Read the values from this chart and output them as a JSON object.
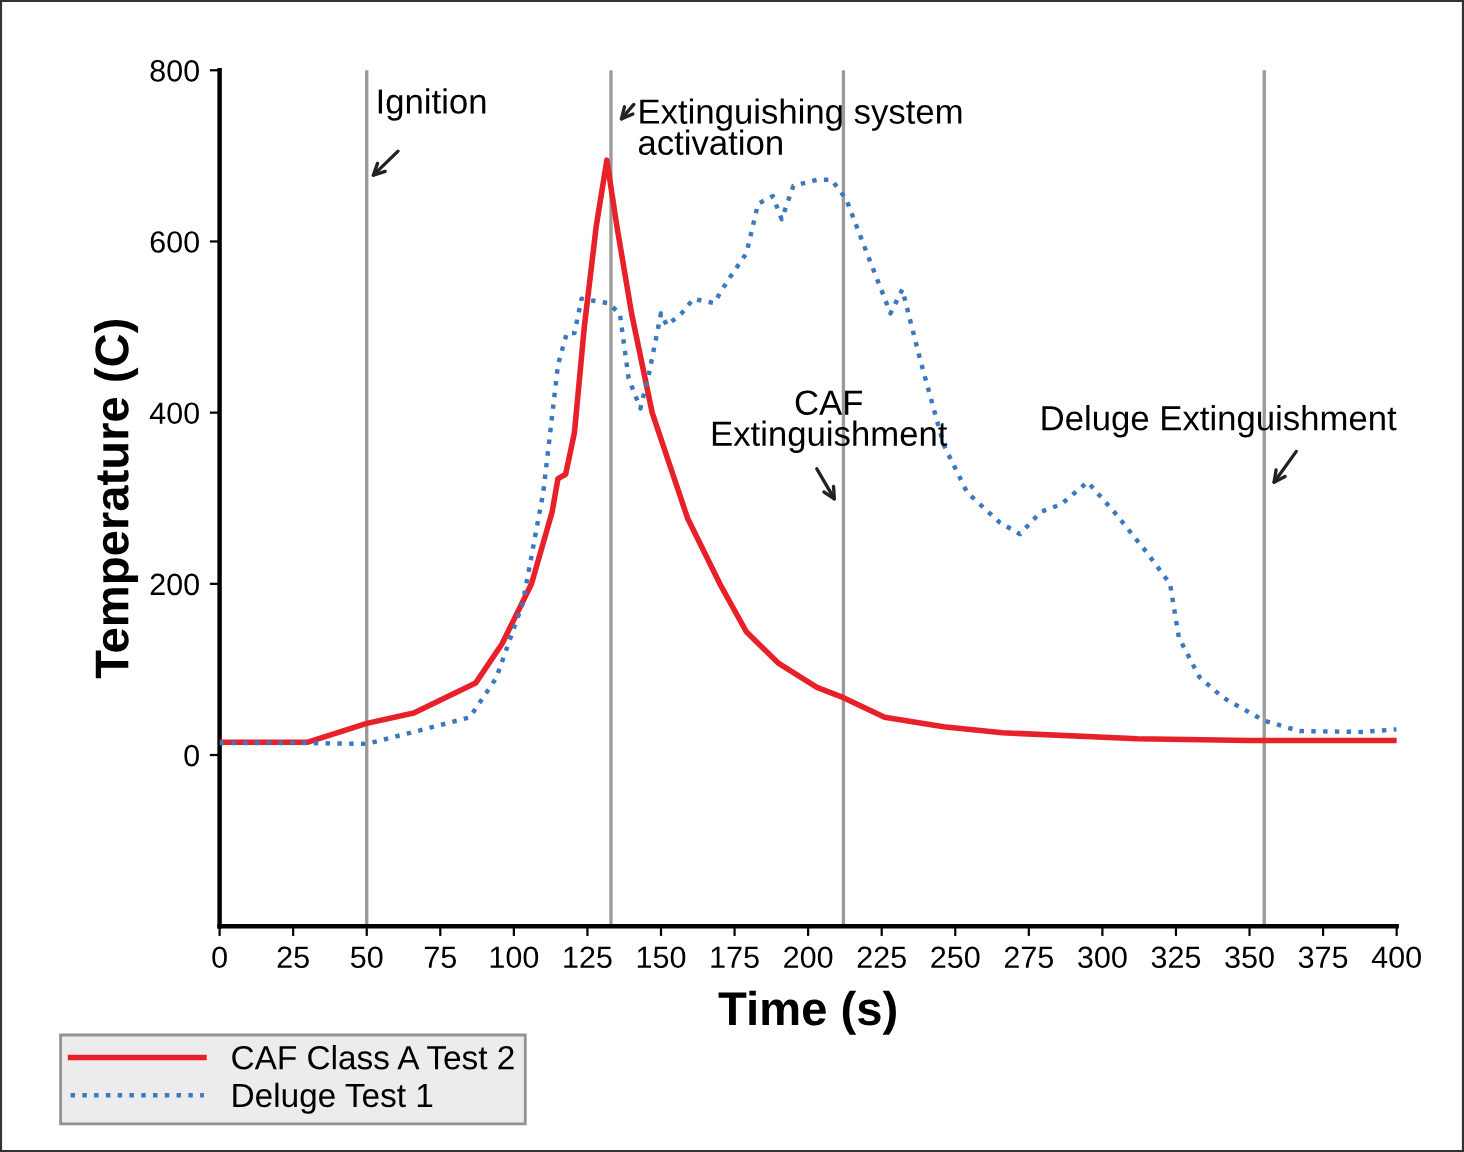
{
  "chart_data": {
    "type": "line",
    "xlabel": "Time (s)",
    "ylabel": "Temperature (C)",
    "xlim": [
      0,
      400
    ],
    "xticks": [
      0,
      25,
      50,
      75,
      100,
      125,
      150,
      175,
      200,
      225,
      250,
      275,
      300,
      325,
      350,
      375,
      400
    ],
    "ylim": [
      -200,
      800
    ],
    "yticks": [
      0,
      200,
      400,
      600,
      800
    ],
    "grid": false,
    "legend": "bottom left",
    "series": [
      {
        "name": "CAF Class A Test 2",
        "color": "#e8202a",
        "line_style": "solid",
        "x": [
          0,
          30,
          50,
          66,
          87,
          96,
          106,
          113,
          115,
          117.6,
          120.6,
          124,
          128,
          131.6,
          135,
          140,
          147,
          159,
          170,
          179,
          190,
          203,
          212,
          226,
          246,
          266,
          312,
          350,
          400
        ],
        "values": [
          15,
          15,
          37,
          49,
          84,
          130,
          200,
          284,
          323,
          328,
          377,
          502,
          618,
          695,
          618,
          516,
          400,
          277,
          200,
          144,
          107,
          79,
          67,
          44,
          33,
          26,
          19,
          17,
          17
        ]
      },
      {
        "name": "Deluge Test 1",
        "color": "#3a78c0",
        "line_style": "dotted",
        "x": [
          0,
          30,
          50,
          66,
          85,
          94,
          103,
          110,
          115,
          118,
          120.6,
          123,
          132,
          136,
          139,
          143,
          146,
          150,
          152,
          157,
          161,
          168,
          173,
          179,
          183,
          188,
          191,
          195,
          203,
          208,
          213,
          219,
          228,
          232,
          238,
          246,
          254,
          265,
          272,
          279,
          286,
          295,
          304,
          315,
          323,
          326,
          333,
          341,
          355,
          367,
          388,
          400
        ],
        "values": [
          14,
          14,
          13,
          27,
          44,
          90,
          177,
          307,
          456,
          493,
          493,
          533,
          528,
          516,
          440,
          405,
          447,
          516,
          502,
          516,
          533,
          528,
          556,
          586,
          644,
          653,
          626,
          665,
          672,
          672,
          649,
          595,
          516,
          544,
          463,
          363,
          307,
          272,
          258,
          284,
          293,
          319,
          284,
          237,
          200,
          137,
          91,
          67,
          40,
          28,
          27,
          30
        ]
      }
    ],
    "ref_lines": [
      {
        "axis": "x",
        "value": 50,
        "label": "Ignition",
        "color": "#9a9a9a"
      },
      {
        "axis": "x",
        "value": 133,
        "label": "Extinguishing system\nactivation",
        "color": "#9a9a9a"
      },
      {
        "axis": "x",
        "value": 212,
        "label": "CAF\nExtinguishment",
        "color": "#9a9a9a"
      },
      {
        "axis": "x",
        "value": 355,
        "label": "Deluge Extinguishment",
        "color": "#9a9a9a"
      }
    ]
  }
}
